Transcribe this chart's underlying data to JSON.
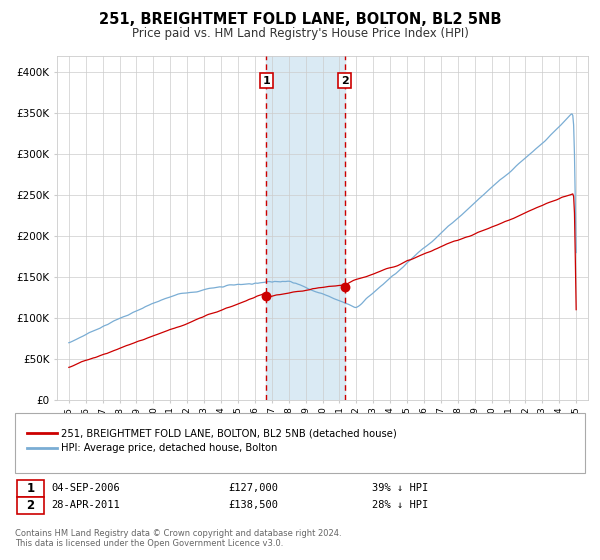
{
  "title": "251, BREIGHTMET FOLD LANE, BOLTON, BL2 5NB",
  "subtitle": "Price paid vs. HM Land Registry's House Price Index (HPI)",
  "legend_line1": "251, BREIGHTMET FOLD LANE, BOLTON, BL2 5NB (detached house)",
  "legend_line2": "HPI: Average price, detached house, Bolton",
  "annotation1_label": "1",
  "annotation1_date": "04-SEP-2006",
  "annotation1_price": "£127,000",
  "annotation1_pct": "39% ↓ HPI",
  "annotation2_label": "2",
  "annotation2_date": "28-APR-2011",
  "annotation2_price": "£138,500",
  "annotation2_pct": "28% ↓ HPI",
  "footnote1": "Contains HM Land Registry data © Crown copyright and database right 2024.",
  "footnote2": "This data is licensed under the Open Government Licence v3.0.",
  "red_color": "#cc0000",
  "blue_color": "#7aadd4",
  "shade_color": "#daeaf4",
  "vline_color": "#cc0000",
  "background_color": "#ffffff",
  "grid_color": "#cccccc",
  "year_start": 1995,
  "year_end": 2025,
  "ylim_max": 420000,
  "sale1_year": 2006.67,
  "sale1_value": 127000,
  "sale2_year": 2011.32,
  "sale2_value": 138500
}
